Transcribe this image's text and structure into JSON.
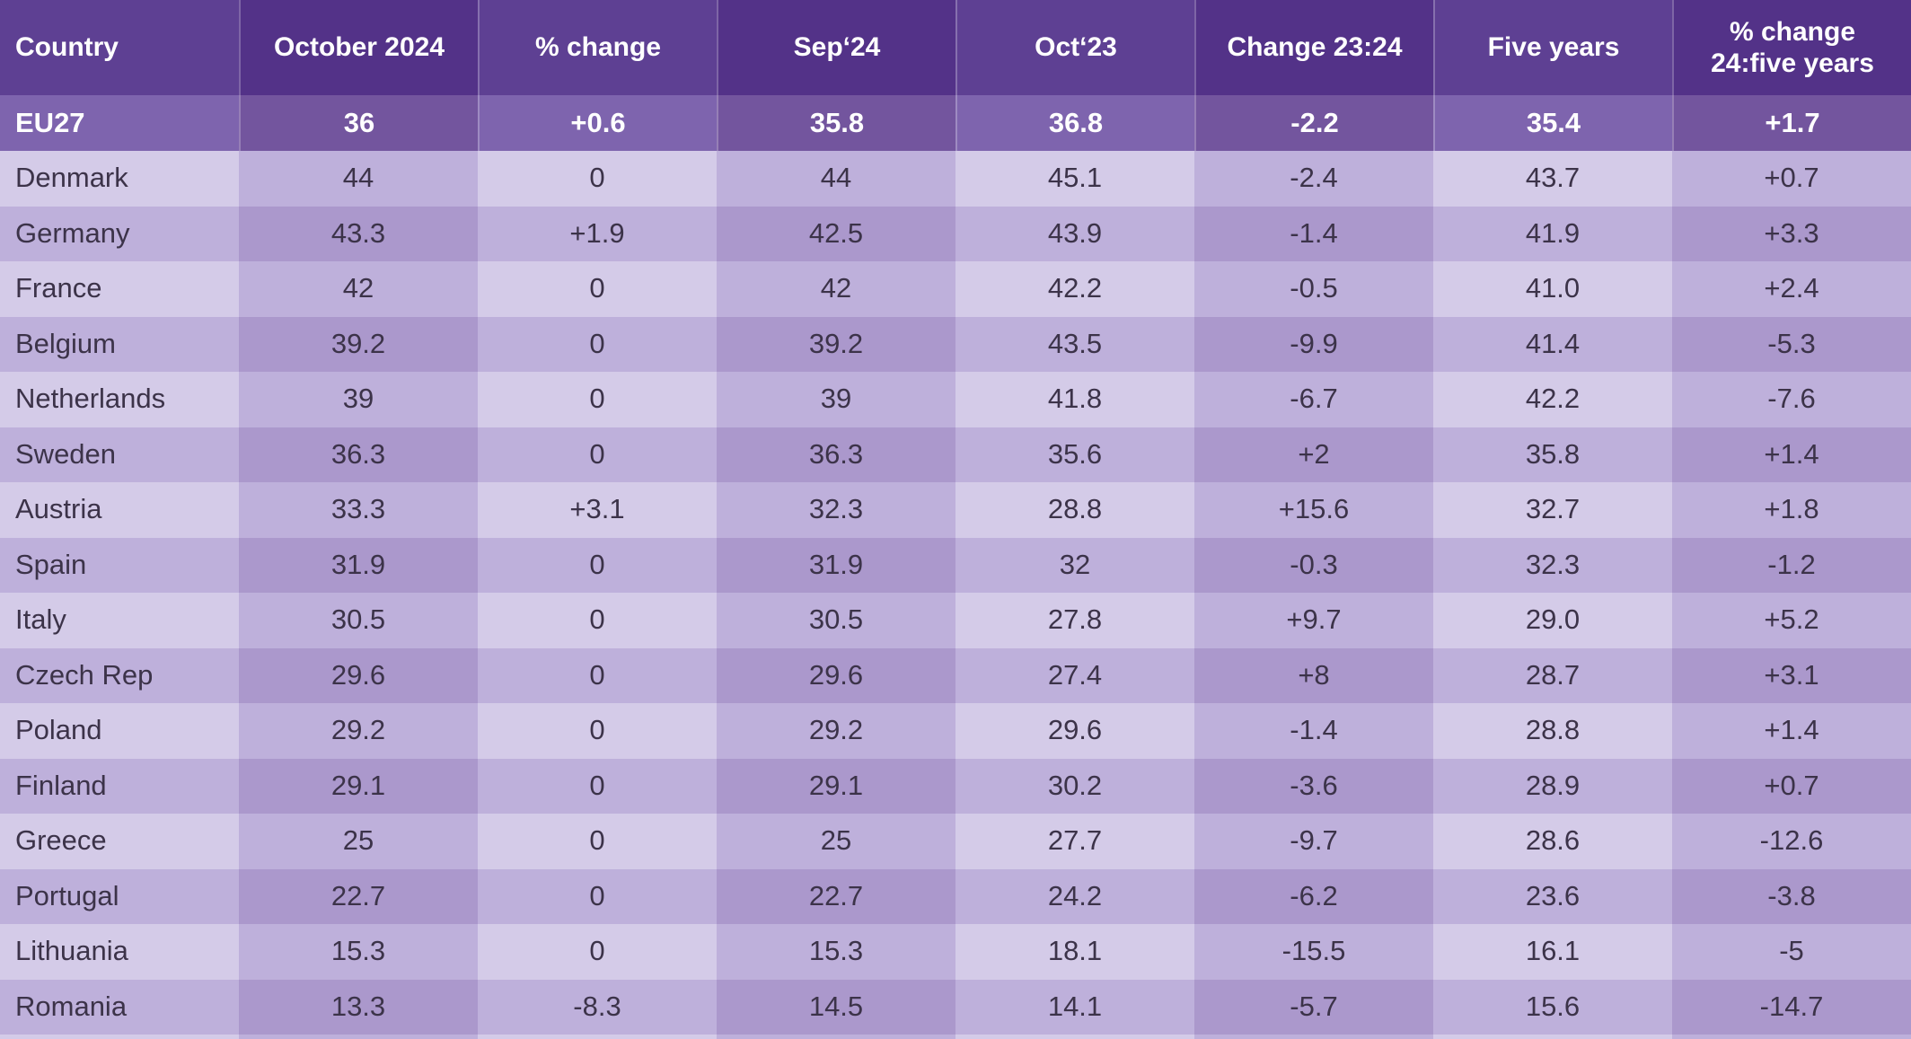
{
  "chart_data": {
    "type": "table",
    "title": "",
    "columns": [
      "Country",
      "October 2024",
      "% change",
      "Sep‘24",
      "Oct‘23",
      "Change 23:24",
      "Five years",
      "% change\n24:five years"
    ],
    "summary_row": {
      "country": "EU27",
      "values": [
        "36",
        "+0.6",
        "35.8",
        "36.8",
        "-2.2",
        "35.4",
        "+1.7"
      ]
    },
    "rows": [
      {
        "country": "Denmark",
        "values": [
          "44",
          "0",
          "44",
          "45.1",
          "-2.4",
          "43.7",
          "+0.7"
        ]
      },
      {
        "country": "Germany",
        "values": [
          "43.3",
          "+1.9",
          "42.5",
          "43.9",
          "-1.4",
          "41.9",
          "+3.3"
        ]
      },
      {
        "country": "France",
        "values": [
          "42",
          "0",
          "42",
          "42.2",
          "-0.5",
          "41.0",
          "+2.4"
        ]
      },
      {
        "country": "Belgium",
        "values": [
          "39.2",
          "0",
          "39.2",
          "43.5",
          "-9.9",
          "41.4",
          "-5.3"
        ]
      },
      {
        "country": "Netherlands",
        "values": [
          "39",
          "0",
          "39",
          "41.8",
          "-6.7",
          "42.2",
          "-7.6"
        ]
      },
      {
        "country": "Sweden",
        "values": [
          "36.3",
          "0",
          "36.3",
          "35.6",
          "+2",
          "35.8",
          "+1.4"
        ]
      },
      {
        "country": "Austria",
        "values": [
          "33.3",
          "+3.1",
          "32.3",
          "28.8",
          "+15.6",
          "32.7",
          "+1.8"
        ]
      },
      {
        "country": "Spain",
        "values": [
          "31.9",
          "0",
          "31.9",
          "32",
          "-0.3",
          "32.3",
          "-1.2"
        ]
      },
      {
        "country": "Italy",
        "values": [
          "30.5",
          "0",
          "30.5",
          "27.8",
          "+9.7",
          "29.0",
          "+5.2"
        ]
      },
      {
        "country": "Czech Rep",
        "values": [
          "29.6",
          "0",
          "29.6",
          "27.4",
          "+8",
          "28.7",
          "+3.1"
        ]
      },
      {
        "country": "Poland",
        "values": [
          "29.2",
          "0",
          "29.2",
          "29.6",
          "-1.4",
          "28.8",
          "+1.4"
        ]
      },
      {
        "country": "Finland",
        "values": [
          "29.1",
          "0",
          "29.1",
          "30.2",
          "-3.6",
          "28.9",
          "+0.7"
        ]
      },
      {
        "country": "Greece",
        "values": [
          "25",
          "0",
          "25",
          "27.7",
          "-9.7",
          "28.6",
          "-12.6"
        ]
      },
      {
        "country": "Portugal",
        "values": [
          "22.7",
          "0",
          "22.7",
          "24.2",
          "-6.2",
          "23.6",
          "-3.8"
        ]
      },
      {
        "country": "Lithuania",
        "values": [
          "15.3",
          "0",
          "15.3",
          "18.1",
          "-15.5",
          "16.1",
          "-5"
        ]
      },
      {
        "country": "Romania",
        "values": [
          "13.3",
          "-8.3",
          "14.5",
          "14.1",
          "-5.7",
          "15.6",
          "-14.7"
        ]
      }
    ],
    "layout_hints": {
      "column_count": 8,
      "row_striping": "checkerboard (alternating by row and by column)",
      "grid": "off"
    }
  },
  "colors": {
    "header_light": "#5e4093",
    "header_dark": "#533288",
    "summary_light": "#7e64ae",
    "summary_dark": "#73559e",
    "row_light_a": "#d4cbe8",
    "row_light_b": "#beb0db",
    "row_dark_a": "#beb0db",
    "row_dark_b": "#ab98cc",
    "text_on_dark": "#ffffff",
    "text_on_light": "#3c3349"
  }
}
